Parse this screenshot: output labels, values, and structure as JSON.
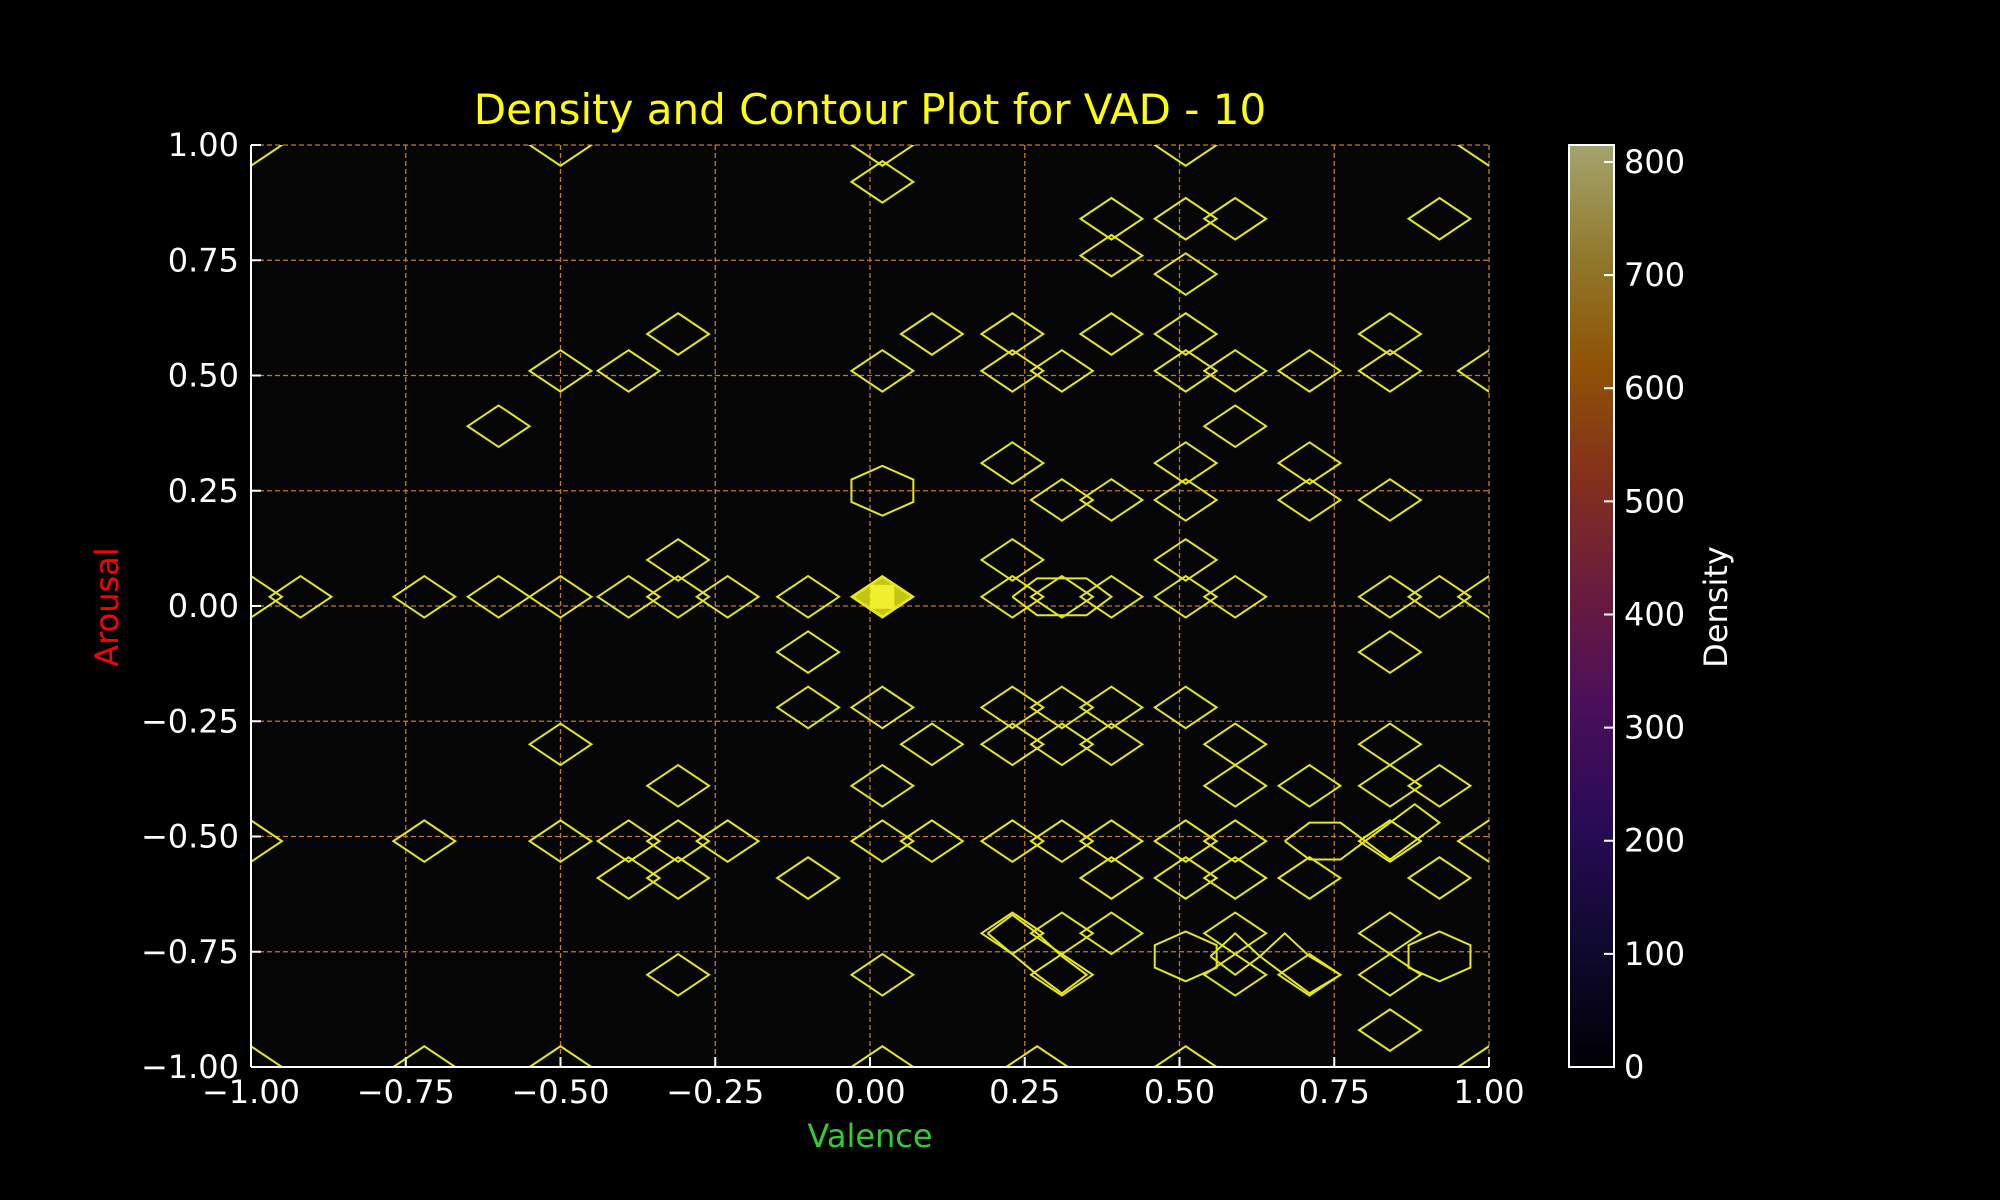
{
  "chart_data": {
    "type": "scatter",
    "title": "Density and Contour Plot for VAD - 10",
    "xlabel": "Valence",
    "ylabel": "Arousal",
    "xlim": [
      -1.0,
      1.0
    ],
    "ylim": [
      -1.0,
      1.0
    ],
    "xticks": [
      "−1.00",
      "−0.75",
      "−0.50",
      "−0.25",
      "0.00",
      "0.25",
      "0.50",
      "0.75",
      "1.00"
    ],
    "yticks": [
      "1.00",
      "0.75",
      "0.50",
      "0.25",
      "0.00",
      "−0.25",
      "−0.50",
      "−0.75",
      "−1.00"
    ],
    "grid": true,
    "colors": {
      "background": "#000000",
      "plot_bg": "#050505",
      "grid": "#c8781e",
      "contour": "#e6e619",
      "peak_fill": "#e6e619"
    },
    "colorbar": {
      "label": "Density",
      "ticks": [
        "0",
        "100",
        "200",
        "300",
        "400",
        "500",
        "600",
        "700",
        "800"
      ],
      "range": [
        0,
        815
      ],
      "colormap": "inferno-like"
    },
    "peak": {
      "x": 0.02,
      "y": 0.02
    },
    "contour_points": [
      [
        -0.92,
        0.02
      ],
      [
        -0.72,
        0.02
      ],
      [
        -0.6,
        0.02
      ],
      [
        -0.5,
        0.02
      ],
      [
        -0.39,
        0.02
      ],
      [
        -0.31,
        0.02
      ],
      [
        -0.23,
        0.02
      ],
      [
        -0.1,
        0.02
      ],
      [
        0.02,
        0.02
      ],
      [
        0.23,
        0.02
      ],
      [
        0.31,
        0.02
      ],
      [
        0.39,
        0.02
      ],
      [
        0.51,
        0.02
      ],
      [
        0.59,
        0.02
      ],
      [
        0.84,
        0.02
      ],
      [
        0.92,
        0.02
      ],
      [
        -1.0,
        0.02
      ],
      [
        1.0,
        0.02
      ],
      [
        -0.31,
        0.1
      ],
      [
        0.23,
        0.1
      ],
      [
        0.51,
        0.1
      ],
      [
        0.02,
        0.92
      ],
      [
        0.02,
        1.0
      ],
      [
        -0.5,
        1.0
      ],
      [
        -1.0,
        1.0
      ],
      [
        0.51,
        1.0
      ],
      [
        1.0,
        1.0
      ],
      [
        0.39,
        0.84
      ],
      [
        0.51,
        0.84
      ],
      [
        0.59,
        0.84
      ],
      [
        0.92,
        0.84
      ],
      [
        0.39,
        0.76
      ],
      [
        0.51,
        0.72
      ],
      [
        -0.31,
        0.59
      ],
      [
        0.1,
        0.59
      ],
      [
        0.23,
        0.59
      ],
      [
        0.39,
        0.59
      ],
      [
        0.51,
        0.59
      ],
      [
        0.84,
        0.59
      ],
      [
        -0.5,
        0.51
      ],
      [
        -0.39,
        0.51
      ],
      [
        0.02,
        0.51
      ],
      [
        0.23,
        0.51
      ],
      [
        0.31,
        0.51
      ],
      [
        0.51,
        0.51
      ],
      [
        0.59,
        0.51
      ],
      [
        0.71,
        0.51
      ],
      [
        0.84,
        0.51
      ],
      [
        1.0,
        0.51
      ],
      [
        -0.6,
        0.39
      ],
      [
        0.59,
        0.39
      ],
      [
        0.23,
        0.31
      ],
      [
        0.51,
        0.31
      ],
      [
        0.71,
        0.31
      ],
      [
        0.31,
        0.23
      ],
      [
        0.39,
        0.23
      ],
      [
        0.51,
        0.23
      ],
      [
        0.71,
        0.23
      ],
      [
        0.84,
        0.23
      ],
      [
        -0.1,
        -0.1
      ],
      [
        0.84,
        -0.1
      ],
      [
        -0.1,
        -0.22
      ],
      [
        0.02,
        -0.22
      ],
      [
        0.23,
        -0.22
      ],
      [
        0.31,
        -0.22
      ],
      [
        0.39,
        -0.22
      ],
      [
        0.51,
        -0.22
      ],
      [
        -0.5,
        -0.3
      ],
      [
        0.1,
        -0.3
      ],
      [
        0.23,
        -0.3
      ],
      [
        0.31,
        -0.3
      ],
      [
        0.39,
        -0.3
      ],
      [
        0.59,
        -0.3
      ],
      [
        0.84,
        -0.3
      ],
      [
        -0.31,
        -0.39
      ],
      [
        0.02,
        -0.39
      ],
      [
        0.59,
        -0.39
      ],
      [
        0.71,
        -0.39
      ],
      [
        0.84,
        -0.39
      ],
      [
        0.92,
        -0.39
      ],
      [
        -1.0,
        -0.51
      ],
      [
        -0.72,
        -0.51
      ],
      [
        -0.5,
        -0.51
      ],
      [
        -0.39,
        -0.51
      ],
      [
        -0.31,
        -0.51
      ],
      [
        -0.23,
        -0.51
      ],
      [
        0.02,
        -0.51
      ],
      [
        0.1,
        -0.51
      ],
      [
        0.23,
        -0.51
      ],
      [
        0.31,
        -0.51
      ],
      [
        0.39,
        -0.51
      ],
      [
        0.51,
        -0.51
      ],
      [
        0.59,
        -0.51
      ],
      [
        0.84,
        -0.51
      ],
      [
        1.0,
        -0.51
      ],
      [
        -0.39,
        -0.59
      ],
      [
        -0.31,
        -0.59
      ],
      [
        -0.1,
        -0.59
      ],
      [
        0.39,
        -0.59
      ],
      [
        0.51,
        -0.59
      ],
      [
        0.59,
        -0.59
      ],
      [
        0.71,
        -0.59
      ],
      [
        0.92,
        -0.59
      ],
      [
        0.23,
        -0.71
      ],
      [
        0.31,
        -0.71
      ],
      [
        0.39,
        -0.71
      ],
      [
        0.59,
        -0.71
      ],
      [
        0.84,
        -0.71
      ],
      [
        -0.31,
        -0.8
      ],
      [
        0.02,
        -0.8
      ],
      [
        0.31,
        -0.8
      ],
      [
        0.59,
        -0.8
      ],
      [
        0.71,
        -0.8
      ],
      [
        0.84,
        -0.8
      ],
      [
        0.84,
        -0.92
      ],
      [
        -1.0,
        -1.0
      ],
      [
        -0.72,
        -1.0
      ],
      [
        -0.5,
        -1.0
      ],
      [
        0.02,
        -1.0
      ],
      [
        0.27,
        -1.0
      ],
      [
        0.51,
        -1.0
      ],
      [
        1.0,
        -1.0
      ]
    ],
    "contour_hexagons": [
      [
        0.02,
        0.25
      ],
      [
        0.51,
        -0.76
      ],
      [
        0.92,
        -0.76
      ]
    ],
    "contour_paths": [
      [
        [
          0.23,
          0.02
        ],
        [
          0.27,
          0.06
        ],
        [
          0.35,
          0.06
        ],
        [
          0.39,
          0.02
        ],
        [
          0.35,
          -0.02
        ],
        [
          0.27,
          -0.02
        ],
        [
          0.23,
          0.02
        ]
      ],
      [
        [
          0.67,
          -0.51
        ],
        [
          0.71,
          -0.47
        ],
        [
          0.76,
          -0.47
        ],
        [
          0.8,
          -0.51
        ],
        [
          0.76,
          -0.55
        ],
        [
          0.71,
          -0.55
        ],
        [
          0.67,
          -0.51
        ]
      ],
      [
        [
          0.8,
          -0.51
        ],
        [
          0.84,
          -0.47
        ],
        [
          0.88,
          -0.43
        ],
        [
          0.92,
          -0.47
        ],
        [
          0.84,
          -0.55
        ],
        [
          0.8,
          -0.51
        ]
      ],
      [
        [
          0.19,
          -0.71
        ],
        [
          0.23,
          -0.67
        ],
        [
          0.27,
          -0.71
        ],
        [
          0.31,
          -0.76
        ],
        [
          0.35,
          -0.8
        ],
        [
          0.31,
          -0.84
        ],
        [
          0.27,
          -0.8
        ],
        [
          0.19,
          -0.71
        ]
      ],
      [
        [
          0.55,
          -0.76
        ],
        [
          0.59,
          -0.71
        ],
        [
          0.63,
          -0.76
        ],
        [
          0.67,
          -0.71
        ],
        [
          0.71,
          -0.76
        ],
        [
          0.76,
          -0.8
        ],
        [
          0.71,
          -0.84
        ],
        [
          0.63,
          -0.76
        ],
        [
          0.59,
          -0.8
        ],
        [
          0.55,
          -0.76
        ]
      ]
    ]
  }
}
